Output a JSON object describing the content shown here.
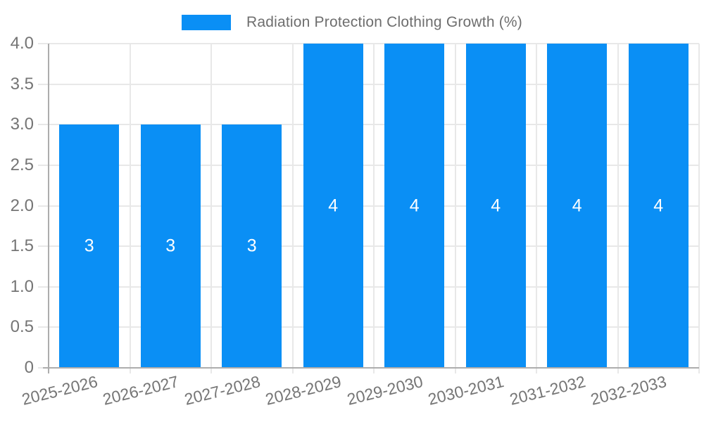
{
  "chart": {
    "legend_label": "Radiation Protection Clothing Growth (%)"
  },
  "chart_data": {
    "type": "bar",
    "title": "Radiation Protection Clothing Growth (%)",
    "categories": [
      "2025-2026",
      "2026-2027",
      "2027-2028",
      "2028-2029",
      "2029-2030",
      "2030-2031",
      "2031-2032",
      "2032-2033"
    ],
    "values": [
      3,
      3,
      3,
      4,
      4,
      4,
      4,
      4
    ],
    "bar_labels": [
      "3",
      "3",
      "3",
      "4",
      "4",
      "4",
      "4",
      "4"
    ],
    "xlabel": "",
    "ylabel": "",
    "ylim": [
      0,
      4
    ],
    "ytick_labels": [
      "0",
      "0.5",
      "1.0",
      "1.5",
      "2.0",
      "2.5",
      "3.0",
      "3.5",
      "4.0"
    ],
    "grid": true,
    "legend_position": "top",
    "colors": {
      "bar": "#0A8FF5",
      "bar_label": "#FFFFFF",
      "grid_line": "#E8E8E8",
      "axis_line": "#ADADAD",
      "tick_text": "#757575",
      "legend_text": "#6E6E6E"
    }
  }
}
